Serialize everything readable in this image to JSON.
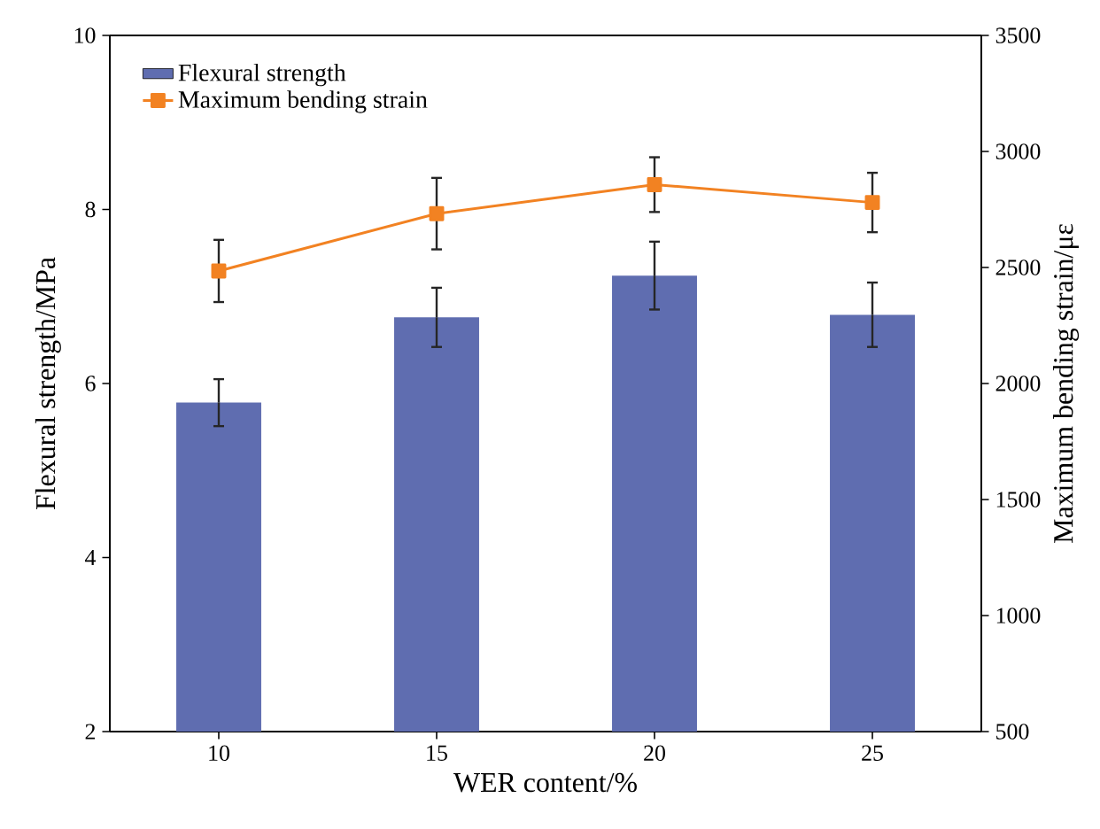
{
  "chart_data": {
    "type": "bar",
    "xlabel": "WER content/%",
    "ylabel": "Flexural strength/MPa",
    "y2label": "Maximum bending strain/με",
    "categories": [
      "10",
      "15",
      "20",
      "25"
    ],
    "series": [
      {
        "name": "Flexural strength",
        "color": "#5f6db0",
        "values": [
          5.78,
          6.76,
          7.24,
          6.79
        ],
        "errors": [
          0.27,
          0.34,
          0.39,
          0.37
        ]
      },
      {
        "name": "Maximum bending strain",
        "type": "line",
        "axis": "y2",
        "color": "#f28222",
        "marker": "square",
        "values": [
          2485,
          2732,
          2857,
          2780
        ],
        "errors": [
          134,
          154,
          118,
          128
        ]
      }
    ],
    "ylim": [
      2,
      10
    ],
    "yticks": [
      2,
      4,
      6,
      8,
      10
    ],
    "y2lim": [
      500,
      3500
    ],
    "y2ticks": [
      500,
      1000,
      1500,
      2000,
      2500,
      3000,
      3500
    ],
    "legend": "top left",
    "grid": false
  }
}
